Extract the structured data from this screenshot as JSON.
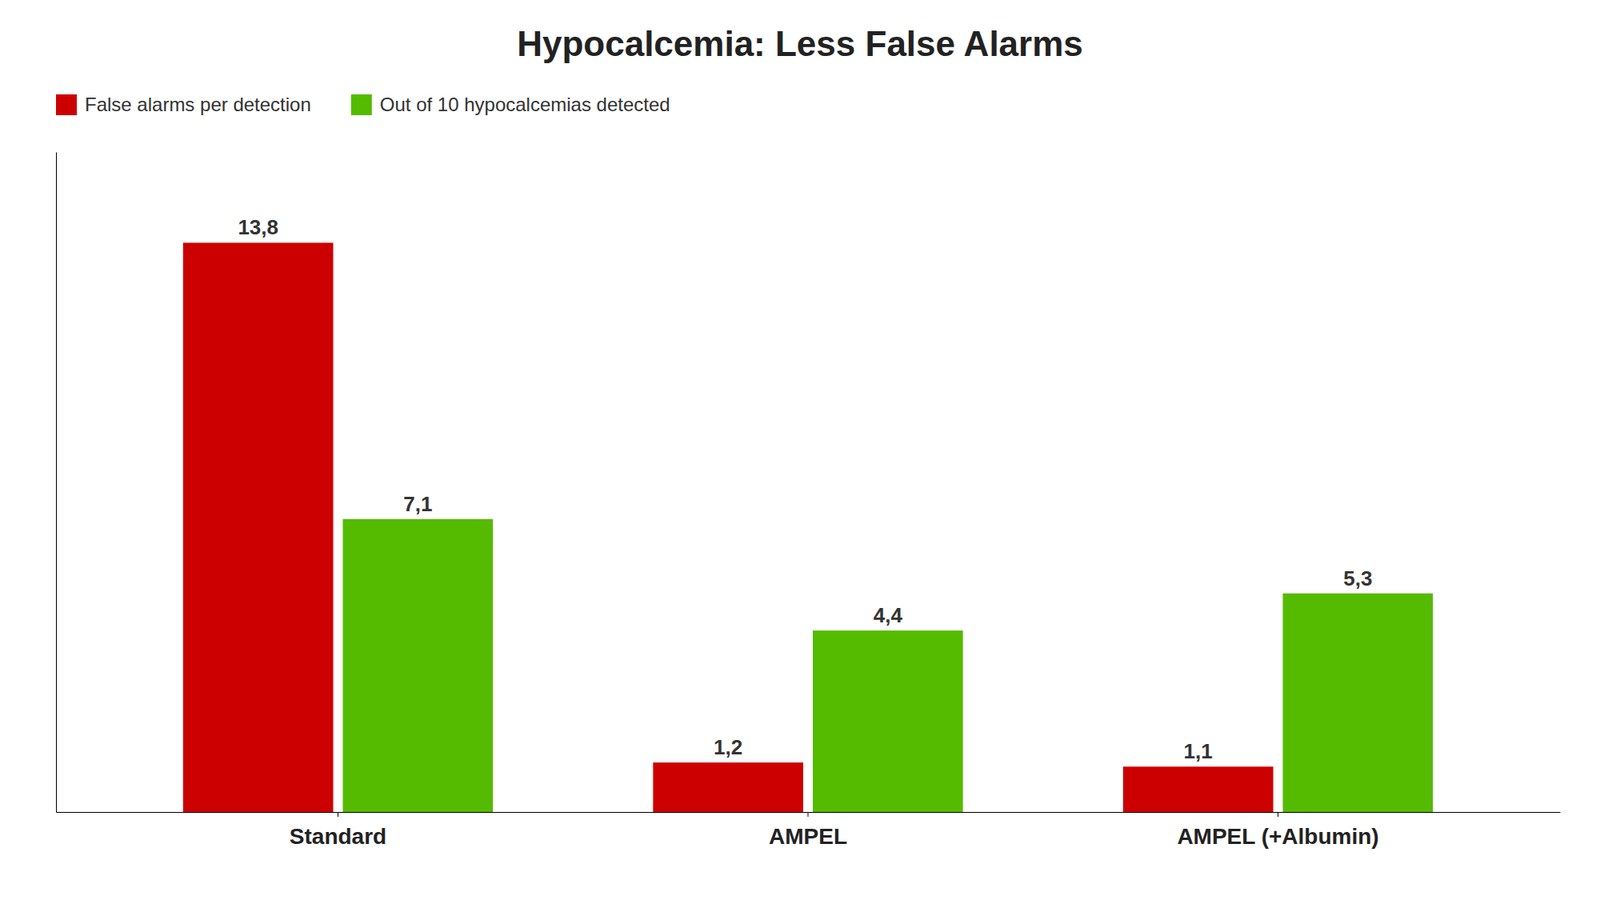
{
  "chart_data": {
    "type": "bar",
    "title": "Hypocalcemia: Less False Alarms",
    "categories": [
      "Standard",
      "AMPEL",
      "AMPEL (+Albumin)"
    ],
    "series": [
      {
        "name": "False alarms per detection",
        "color": "#cc0000",
        "values": [
          13.8,
          1.2,
          1.1
        ],
        "value_labels": [
          "13,8",
          "1,2",
          "1,1"
        ]
      },
      {
        "name": "Out of 10 hypocalcemias detected",
        "color": "#55bb00",
        "values": [
          7.1,
          4.4,
          5.3
        ],
        "value_labels": [
          "7,1",
          "4,4",
          "5,3"
        ]
      }
    ],
    "ylim": [
      0,
      16
    ],
    "yticks": [],
    "grid": false,
    "legend": "upper left",
    "data_labels": true,
    "tick_labels": "x"
  }
}
